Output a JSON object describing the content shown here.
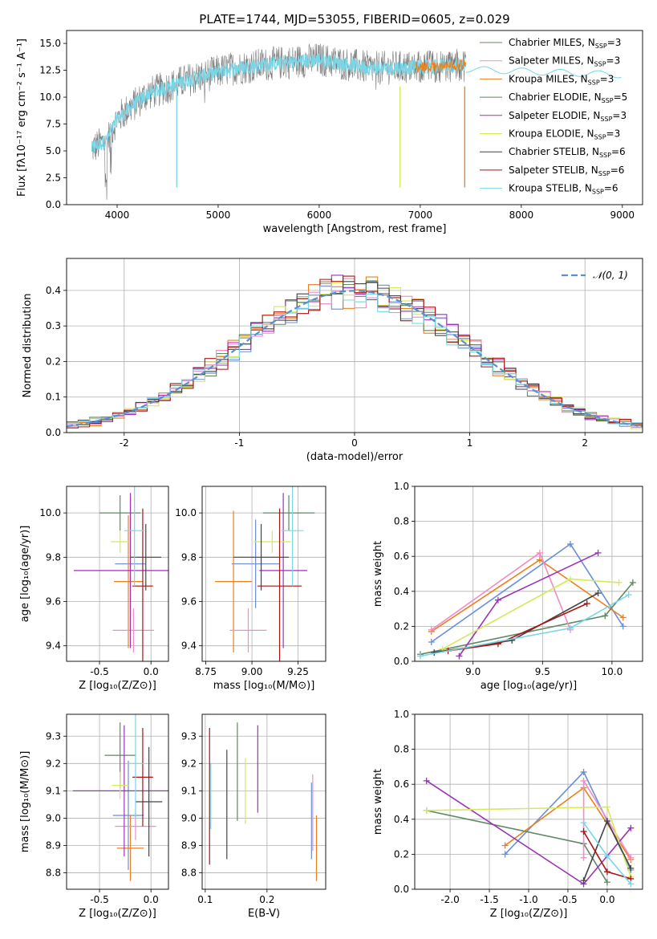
{
  "figure": {
    "palette": [
      "#6a8fd8",
      "#ec7f1d",
      "#5d8a62",
      "#f08cc8",
      "#9b33b8",
      "#d7e85a",
      "#444444",
      "#a81515",
      "#7ad6e6"
    ]
  },
  "chart_data": [
    {
      "id": "spectrum",
      "type": "line",
      "title": "PLATE=1744, MJD=53055, FIBERID=0605, z=0.029",
      "xlabel": "wavelength [Angstrom, rest frame]",
      "ylabel": "Flux [fλ10⁻¹⁷ erg cm⁻² s⁻¹ A⁻¹]",
      "xlim": [
        3500,
        9200
      ],
      "ylim": [
        0,
        16.2
      ],
      "xticks": [
        4000,
        5000,
        6000,
        7000,
        8000,
        9000
      ],
      "yticks": [
        0.0,
        2.5,
        5.0,
        7.5,
        10.0,
        12.5,
        15.0
      ],
      "data_range": [
        3750,
        7450
      ],
      "continuum_knots": [
        [
          3750,
          5.2
        ],
        [
          3900,
          6.0
        ],
        [
          4000,
          8.0
        ],
        [
          4300,
          10.3
        ],
        [
          4700,
          11.6
        ],
        [
          5100,
          12.6
        ],
        [
          5500,
          13.1
        ],
        [
          6000,
          13.5
        ],
        [
          6500,
          12.7
        ],
        [
          7000,
          12.8
        ],
        [
          7450,
          13.0
        ]
      ],
      "dips": [
        [
          4590,
          1.6
        ],
        [
          6800,
          1.6
        ],
        [
          7440,
          1.6
        ]
      ],
      "legend": [
        {
          "label": "Chabrier MILES, N",
          "sub": "SSP",
          "tail": "=3",
          "color": "#5d8a62"
        },
        {
          "label": "Salpeter MILES, N",
          "sub": "SSP",
          "tail": "=3",
          "color": "#f08cc8"
        },
        {
          "label": "Kroupa MILES, N",
          "sub": "SSP",
          "tail": "=3",
          "color": "#ec7f1d"
        },
        {
          "label": "Chabrier ELODIE, N",
          "sub": "SSP",
          "tail": "=5",
          "color": "#5d8a62"
        },
        {
          "label": "Salpeter ELODIE, N",
          "sub": "SSP",
          "tail": "=3",
          "color": "#9b33b8"
        },
        {
          "label": "Kroupa ELODIE, N",
          "sub": "SSP",
          "tail": "=3",
          "color": "#d7e85a"
        },
        {
          "label": "Chabrier STELIB, N",
          "sub": "SSP",
          "tail": "=6",
          "color": "#444444"
        },
        {
          "label": "Salpeter STELIB, N",
          "sub": "SSP",
          "tail": "=6",
          "color": "#a81515"
        },
        {
          "label": "Kroupa STELIB, N",
          "sub": "SSP",
          "tail": "=6",
          "color": "#7ad6e6"
        }
      ]
    },
    {
      "id": "residuals",
      "type": "histogram",
      "xlabel": "(data-model)/error",
      "ylabel": "Normed distribution",
      "xlim": [
        -2.5,
        2.5
      ],
      "ylim": [
        0,
        0.49
      ],
      "xticks": [
        -2,
        -1,
        0,
        1,
        2
      ],
      "yticks": [
        0.0,
        0.1,
        0.2,
        0.3,
        0.4
      ],
      "bin_width": 0.1,
      "legend": "𝒩(0, 1)",
      "gaussian": {
        "mu": 0,
        "sigma": 1,
        "color": "#5b8fd0"
      },
      "series_colors": [
        "#6a8fd8",
        "#ec7f1d",
        "#5d8a62",
        "#f08cc8",
        "#9b33b8",
        "#d7e85a",
        "#444444",
        "#a81515",
        "#7ad6e6"
      ]
    },
    {
      "id": "age_vs_Z",
      "type": "errorbar",
      "xlabel": "Z [log₁₀(Z/Z⊙)]",
      "ylabel": "age  [log₁₀(age/yr)]",
      "xlim": [
        -0.82,
        0.17
      ],
      "ylim": [
        9.33,
        10.12
      ],
      "xticks": [
        -0.5,
        0.0
      ],
      "yticks": [
        9.4,
        9.6,
        9.8,
        10.0
      ],
      "points": [
        {
          "x": -0.2,
          "y": 9.77,
          "xerr": 0.15,
          "yerr": 0.3,
          "color": "#6a8fd8"
        },
        {
          "x": -0.22,
          "y": 9.69,
          "xerr": 0.14,
          "yerr": 0.3,
          "color": "#ec7f1d"
        },
        {
          "x": -0.3,
          "y": 10.0,
          "xerr": 0.2,
          "yerr": 0.08,
          "color": "#5d8a62"
        },
        {
          "x": -0.17,
          "y": 9.47,
          "xerr": 0.2,
          "yerr": 0.1,
          "color": "#f08cc8"
        },
        {
          "x": -0.2,
          "y": 9.74,
          "xerr": 0.55,
          "yerr": 0.35,
          "color": "#9b33b8"
        },
        {
          "x": -0.3,
          "y": 9.87,
          "xerr": 0.09,
          "yerr": 0.05,
          "color": "#d7e85a"
        },
        {
          "x": -0.05,
          "y": 9.8,
          "xerr": 0.15,
          "yerr": 0.15,
          "color": "#444444"
        },
        {
          "x": -0.08,
          "y": 9.67,
          "xerr": 0.1,
          "yerr": 0.35,
          "color": "#a81515"
        },
        {
          "x": -0.16,
          "y": 9.92,
          "xerr": 0.1,
          "yerr": 0.25,
          "color": "#7ad6e6"
        }
      ]
    },
    {
      "id": "age_vs_mass",
      "type": "errorbar",
      "xlabel": "mass [log₁₀(M/M⊙)]",
      "ylabel": "",
      "xlim": [
        8.73,
        9.4
      ],
      "ylim": [
        9.33,
        10.12
      ],
      "xticks": [
        8.75,
        9.0,
        9.25
      ],
      "yticks": [
        9.4,
        9.6,
        9.8,
        10.0
      ],
      "points": [
        {
          "x": 9.02,
          "y": 9.77,
          "xerr": 0.13,
          "yerr": 0.2,
          "color": "#6a8fd8"
        },
        {
          "x": 8.9,
          "y": 9.69,
          "xerr": 0.1,
          "yerr": 0.32,
          "color": "#ec7f1d"
        },
        {
          "x": 9.2,
          "y": 10.0,
          "xerr": 0.14,
          "yerr": 0.08,
          "color": "#5d8a62"
        },
        {
          "x": 8.98,
          "y": 9.47,
          "xerr": 0.1,
          "yerr": 0.1,
          "color": "#f08cc8"
        },
        {
          "x": 9.17,
          "y": 9.74,
          "xerr": 0.13,
          "yerr": 0.35,
          "color": "#9b33b8"
        },
        {
          "x": 9.11,
          "y": 9.87,
          "xerr": 0.1,
          "yerr": 0.05,
          "color": "#d7e85a"
        },
        {
          "x": 9.05,
          "y": 9.8,
          "xerr": 0.15,
          "yerr": 0.15,
          "color": "#444444"
        },
        {
          "x": 9.15,
          "y": 9.67,
          "xerr": 0.12,
          "yerr": 0.35,
          "color": "#a81515"
        },
        {
          "x": 9.22,
          "y": 9.92,
          "xerr": 0.06,
          "yerr": 0.25,
          "color": "#7ad6e6"
        }
      ]
    },
    {
      "id": "weight_vs_age",
      "type": "line",
      "xlabel": "age  [log₁₀(age/yr)]",
      "ylabel": "mass weight",
      "xlim": [
        8.58,
        10.22
      ],
      "ylim": [
        0,
        1
      ],
      "xticks": [
        9.0,
        9.5,
        10.0
      ],
      "yticks": [
        0.0,
        0.2,
        0.4,
        0.6,
        0.8,
        1.0
      ],
      "series": [
        {
          "color": "#6a8fd8",
          "points": [
            [
              8.7,
              0.11
            ],
            [
              9.7,
              0.67
            ],
            [
              10.08,
              0.2
            ]
          ]
        },
        {
          "color": "#ec7f1d",
          "points": [
            [
              8.7,
              0.17
            ],
            [
              9.48,
              0.58
            ],
            [
              10.08,
              0.25
            ]
          ]
        },
        {
          "color": "#5d8a62",
          "points": [
            [
              8.62,
              0.04
            ],
            [
              9.95,
              0.26
            ],
            [
              10.15,
              0.45
            ]
          ]
        },
        {
          "color": "#f08cc8",
          "points": [
            [
              8.7,
              0.18
            ],
            [
              9.48,
              0.62
            ],
            [
              9.7,
              0.18
            ]
          ]
        },
        {
          "color": "#9b33b8",
          "points": [
            [
              8.9,
              0.03
            ],
            [
              9.18,
              0.35
            ],
            [
              9.9,
              0.62
            ]
          ]
        },
        {
          "color": "#d7e85a",
          "points": [
            [
              8.78,
              0.07
            ],
            [
              9.7,
              0.47
            ],
            [
              10.05,
              0.45
            ]
          ]
        },
        {
          "color": "#444444",
          "points": [
            [
              8.72,
              0.05
            ],
            [
              9.28,
              0.12
            ],
            [
              9.9,
              0.39
            ]
          ]
        },
        {
          "color": "#a81515",
          "points": [
            [
              8.82,
              0.06
            ],
            [
              9.18,
              0.1
            ],
            [
              9.82,
              0.33
            ]
          ]
        },
        {
          "color": "#7ad6e6",
          "points": [
            [
              8.62,
              0.03
            ],
            [
              9.7,
              0.19
            ],
            [
              10.12,
              0.38
            ]
          ]
        }
      ]
    },
    {
      "id": "mass_vs_Z",
      "type": "errorbar",
      "xlabel": "Z [log₁₀(Z/Z⊙)]",
      "ylabel": "mass [log₁₀(M/M⊙)]",
      "xlim": [
        -0.82,
        0.17
      ],
      "ylim": [
        8.74,
        9.38
      ],
      "xticks": [
        -0.5,
        0.0
      ],
      "yticks": [
        8.8,
        8.9,
        9.0,
        9.1,
        9.2,
        9.3
      ],
      "points": [
        {
          "x": -0.22,
          "y": 9.01,
          "xerr": 0.15,
          "yerr": 0.2,
          "color": "#6a8fd8"
        },
        {
          "x": -0.2,
          "y": 8.89,
          "xerr": 0.13,
          "yerr": 0.12,
          "color": "#ec7f1d"
        },
        {
          "x": -0.3,
          "y": 9.23,
          "xerr": 0.15,
          "yerr": 0.12,
          "color": "#5d8a62"
        },
        {
          "x": -0.15,
          "y": 8.97,
          "xerr": 0.2,
          "yerr": 0.05,
          "color": "#f08cc8"
        },
        {
          "x": -0.26,
          "y": 9.1,
          "xerr": 0.5,
          "yerr": 0.24,
          "color": "#9b33b8"
        },
        {
          "x": -0.3,
          "y": 9.12,
          "xerr": 0.08,
          "yerr": 0.05,
          "color": "#d7e85a"
        },
        {
          "x": -0.02,
          "y": 9.06,
          "xerr": 0.13,
          "yerr": 0.2,
          "color": "#444444"
        },
        {
          "x": -0.08,
          "y": 9.15,
          "xerr": 0.1,
          "yerr": 0.18,
          "color": "#a81515"
        },
        {
          "x": -0.15,
          "y": 9.2,
          "xerr": 0.08,
          "yerr": 0.2,
          "color": "#7ad6e6"
        }
      ]
    },
    {
      "id": "mass_vs_EBV",
      "type": "errorbar",
      "xlabel": "E(B-V)",
      "ylabel": "",
      "xlim": [
        0.095,
        0.295
      ],
      "ylim": [
        8.74,
        9.38
      ],
      "xticks": [
        0.1,
        0.2
      ],
      "yticks": [
        8.8,
        8.9,
        9.0,
        9.1,
        9.2,
        9.3
      ],
      "points": [
        {
          "x": 0.107,
          "y": 9.08,
          "yerr": 0.25,
          "color": "#a81515"
        },
        {
          "x": 0.109,
          "y": 9.08,
          "yerr": 0.12,
          "color": "#7ad6e6"
        },
        {
          "x": 0.135,
          "y": 9.05,
          "yerr": 0.2,
          "color": "#444444"
        },
        {
          "x": 0.152,
          "y": 9.17,
          "yerr": 0.18,
          "color": "#5d8a62"
        },
        {
          "x": 0.165,
          "y": 9.1,
          "yerr": 0.12,
          "color": "#d7e85a"
        },
        {
          "x": 0.185,
          "y": 9.18,
          "yerr": 0.16,
          "color": "#9b33b8"
        },
        {
          "x": 0.272,
          "y": 8.99,
          "yerr": 0.14,
          "color": "#6a8fd8"
        },
        {
          "x": 0.274,
          "y": 9.02,
          "yerr": 0.14,
          "color": "#f08cc8"
        },
        {
          "x": 0.28,
          "y": 8.89,
          "yerr": 0.12,
          "color": "#ec7f1d"
        }
      ]
    },
    {
      "id": "weight_vs_Z",
      "type": "line",
      "xlabel": "Z [log₁₀(Z/Z⊙)]",
      "ylabel": "mass weight",
      "xlim": [
        -2.45,
        0.45
      ],
      "ylim": [
        0,
        1
      ],
      "xticks": [
        -2.0,
        -1.5,
        -1.0,
        -0.5,
        0.0
      ],
      "yticks": [
        0.0,
        0.2,
        0.4,
        0.6,
        0.8,
        1.0
      ],
      "series": [
        {
          "color": "#6a8fd8",
          "points": [
            [
              -1.3,
              0.2
            ],
            [
              -0.3,
              0.67
            ],
            [
              0.3,
              0.11
            ]
          ]
        },
        {
          "color": "#ec7f1d",
          "points": [
            [
              -1.3,
              0.25
            ],
            [
              -0.3,
              0.58
            ],
            [
              0.3,
              0.17
            ]
          ]
        },
        {
          "color": "#5d8a62",
          "points": [
            [
              -2.3,
              0.45
            ],
            [
              -0.3,
              0.26
            ],
            [
              0.0,
              0.04
            ]
          ]
        },
        {
          "color": "#f08cc8",
          "points": [
            [
              -0.3,
              0.18
            ],
            [
              -0.3,
              0.62
            ],
            [
              0.3,
              0.18
            ]
          ]
        },
        {
          "color": "#9b33b8",
          "points": [
            [
              -2.3,
              0.62
            ],
            [
              -0.3,
              0.03
            ],
            [
              0.3,
              0.35
            ]
          ]
        },
        {
          "color": "#d7e85a",
          "points": [
            [
              -2.3,
              0.45
            ],
            [
              0.0,
              0.47
            ],
            [
              0.3,
              0.07
            ]
          ]
        },
        {
          "color": "#444444",
          "points": [
            [
              -0.3,
              0.05
            ],
            [
              0.0,
              0.39
            ],
            [
              0.3,
              0.12
            ]
          ]
        },
        {
          "color": "#a81515",
          "points": [
            [
              -0.3,
              0.33
            ],
            [
              0.0,
              0.1
            ],
            [
              0.3,
              0.06
            ]
          ]
        },
        {
          "color": "#7ad6e6",
          "points": [
            [
              -0.3,
              0.38
            ],
            [
              0.0,
              0.19
            ],
            [
              0.3,
              0.03
            ]
          ]
        }
      ]
    }
  ]
}
